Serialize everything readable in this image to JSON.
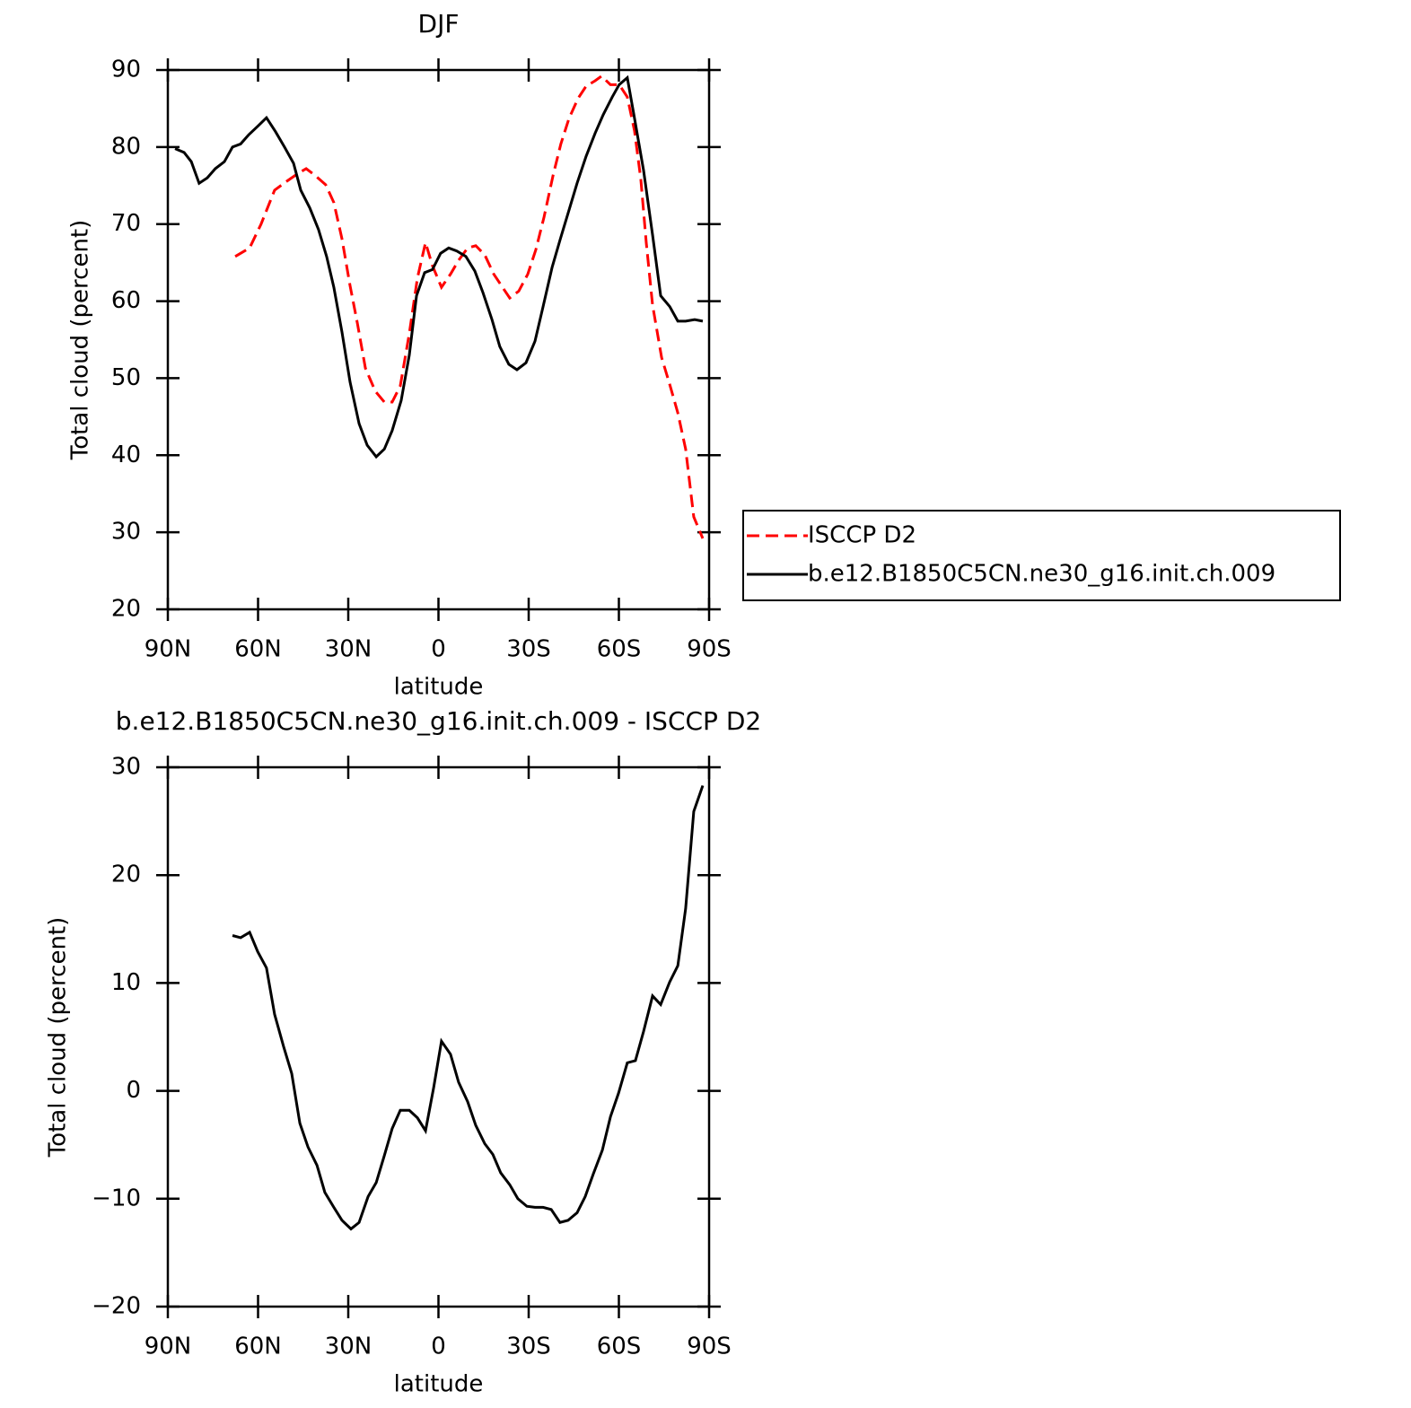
{
  "chart_data": [
    {
      "type": "line",
      "title": "DJF",
      "xlabel": "latitude",
      "ylabel": "Total cloud (percent)",
      "xlim": [
        90,
        -90
      ],
      "xticks": [
        {
          "value": 90,
          "label": "90N"
        },
        {
          "value": 60,
          "label": "60N"
        },
        {
          "value": 30,
          "label": "30N"
        },
        0,
        {
          "value": -30,
          "label": "30S"
        },
        {
          "value": -60,
          "label": "60S"
        },
        {
          "value": -90,
          "label": "90S"
        }
      ],
      "ylim": [
        20,
        90
      ],
      "yticks": [
        20,
        30,
        40,
        50,
        60,
        70,
        80,
        90
      ],
      "legend": "outside right",
      "series": [
        {
          "name": "ISCCP D2",
          "color": "#ff0000",
          "linestyle": "dashed",
          "x": [
            67.6,
            62.8,
            59.0,
            54.5,
            50.3,
            47.0,
            44.0,
            41.0,
            37.5,
            34.8,
            32.1,
            29.4,
            27.0,
            24.3,
            21.0,
            18.0,
            15.4,
            12.7,
            9.7,
            7.0,
            4.3,
            2.0,
            -1.0,
            -4.0,
            -6.7,
            -9.7,
            -12.4,
            -15.4,
            -18.4,
            -21.3,
            -23.7,
            -26.7,
            -29.7,
            -32.4,
            -35.1,
            -38.1,
            -40.7,
            -43.4,
            -46.4,
            -49.1,
            -52.1,
            -54.2,
            -57.2,
            -60.1,
            -62.8,
            -65.2,
            -67.3,
            -69.1,
            -71.2,
            -74.2,
            -76.9,
            -79.6,
            -82.2,
            -84.9,
            -87.9
          ],
          "values": [
            65.8,
            66.9,
            70.0,
            74.4,
            75.6,
            76.5,
            77.2,
            76.3,
            75.1,
            72.8,
            68.1,
            62.0,
            57.2,
            51.3,
            48.3,
            46.9,
            46.9,
            49.0,
            55.8,
            63.0,
            67.6,
            64.6,
            61.8,
            63.5,
            65.3,
            66.9,
            67.2,
            66.0,
            63.5,
            61.8,
            60.4,
            61.3,
            63.5,
            66.7,
            70.9,
            76.3,
            80.4,
            83.7,
            86.3,
            87.9,
            88.6,
            89.2,
            88.1,
            88.1,
            86.5,
            82.1,
            75.8,
            67.6,
            59.5,
            52.7,
            49.2,
            45.5,
            40.8,
            32.0,
            29.2
          ]
        },
        {
          "name": "b.e12.B1850C5CN.ne30_g16.init.ch.009",
          "color": "#000000",
          "linestyle": "solid",
          "x": [
            87.6,
            84.6,
            82.2,
            79.6,
            76.9,
            74.2,
            71.2,
            68.5,
            65.8,
            63.1,
            60.1,
            57.2,
            54.2,
            51.2,
            48.2,
            45.8,
            42.8,
            39.9,
            37.2,
            34.8,
            32.1,
            29.4,
            26.4,
            23.7,
            20.7,
            18.0,
            15.4,
            12.4,
            9.7,
            7.3,
            4.6,
            2.0,
            -0.7,
            -3.4,
            -6.1,
            -9.1,
            -12.1,
            -14.8,
            -17.8,
            -20.4,
            -23.4,
            -26.1,
            -29.1,
            -32.1,
            -34.8,
            -37.8,
            -40.4,
            -43.4,
            -46.1,
            -49.1,
            -52.1,
            -54.8,
            -57.8,
            -60.1,
            -62.8,
            -64.9,
            -68.2,
            -71.2,
            -73.9,
            -76.9,
            -79.6,
            -82.2,
            -85.2,
            -87.9
          ],
          "values": [
            79.8,
            79.3,
            78.1,
            75.3,
            76.0,
            77.2,
            78.1,
            80.0,
            80.4,
            81.6,
            82.7,
            83.8,
            82.0,
            80.0,
            77.9,
            74.4,
            72.1,
            69.3,
            65.8,
            61.8,
            56.0,
            49.5,
            44.1,
            41.3,
            39.8,
            40.8,
            43.2,
            47.1,
            53.0,
            60.7,
            63.7,
            64.1,
            66.2,
            66.9,
            66.5,
            65.8,
            63.9,
            61.1,
            57.6,
            54.1,
            51.8,
            51.1,
            52.0,
            54.8,
            59.3,
            64.4,
            67.9,
            71.8,
            75.3,
            78.8,
            81.8,
            84.2,
            86.5,
            88.1,
            89.0,
            84.4,
            77.0,
            68.6,
            60.7,
            59.3,
            57.4,
            57.4,
            57.6,
            57.4
          ]
        }
      ]
    },
    {
      "type": "line",
      "title": "b.e12.B1850C5CN.ne30_g16.init.ch.009 - ISCCP D2",
      "xlabel": "latitude",
      "ylabel": "Total cloud (percent)",
      "xlim": [
        90,
        -90
      ],
      "xticks": [
        {
          "value": 90,
          "label": "90N"
        },
        {
          "value": 60,
          "label": "60N"
        },
        {
          "value": 30,
          "label": "30N"
        },
        0,
        {
          "value": -30,
          "label": "30S"
        },
        {
          "value": -60,
          "label": "60S"
        },
        {
          "value": -90,
          "label": "90S"
        }
      ],
      "ylim": [
        -20,
        30
      ],
      "yticks": [
        {
          "value": -20,
          "label": "−20"
        },
        {
          "value": -10,
          "label": "−10"
        },
        0,
        10,
        20,
        30
      ],
      "series": [
        {
          "color": "#000000",
          "linestyle": "solid",
          "x": [
            68.5,
            65.8,
            62.8,
            60.1,
            57.2,
            54.5,
            51.5,
            48.8,
            46.1,
            43.4,
            40.4,
            37.8,
            34.8,
            32.1,
            29.1,
            26.4,
            23.4,
            20.7,
            18.0,
            15.4,
            12.7,
            9.7,
            7.0,
            4.3,
            1.6,
            -1.0,
            -4.0,
            -6.7,
            -9.7,
            -12.4,
            -15.4,
            -18.1,
            -20.7,
            -23.7,
            -26.4,
            -29.4,
            -32.1,
            -34.8,
            -37.5,
            -40.4,
            -43.1,
            -46.1,
            -48.8,
            -51.5,
            -54.5,
            -57.2,
            -59.9,
            -62.8,
            -65.5,
            -68.2,
            -71.2,
            -73.9,
            -76.9,
            -79.6,
            -82.2,
            -84.9,
            -87.9
          ],
          "values": [
            14.4,
            14.2,
            14.7,
            12.9,
            11.4,
            7.1,
            4.1,
            1.6,
            -3.0,
            -5.2,
            -6.9,
            -9.4,
            -10.8,
            -12.0,
            -12.8,
            -12.2,
            -9.8,
            -8.5,
            -6.0,
            -3.5,
            -1.8,
            -1.8,
            -2.5,
            -3.7,
            0.3,
            4.6,
            3.4,
            0.8,
            -1.0,
            -3.2,
            -4.9,
            -5.9,
            -7.6,
            -8.7,
            -10.0,
            -10.7,
            -10.8,
            -10.8,
            -11.0,
            -12.2,
            -12.0,
            -11.3,
            -9.8,
            -7.7,
            -5.5,
            -2.4,
            -0.2,
            2.6,
            2.8,
            5.5,
            8.8,
            8.0,
            10.1,
            11.6,
            16.9,
            25.9,
            28.3
          ]
        }
      ]
    }
  ]
}
